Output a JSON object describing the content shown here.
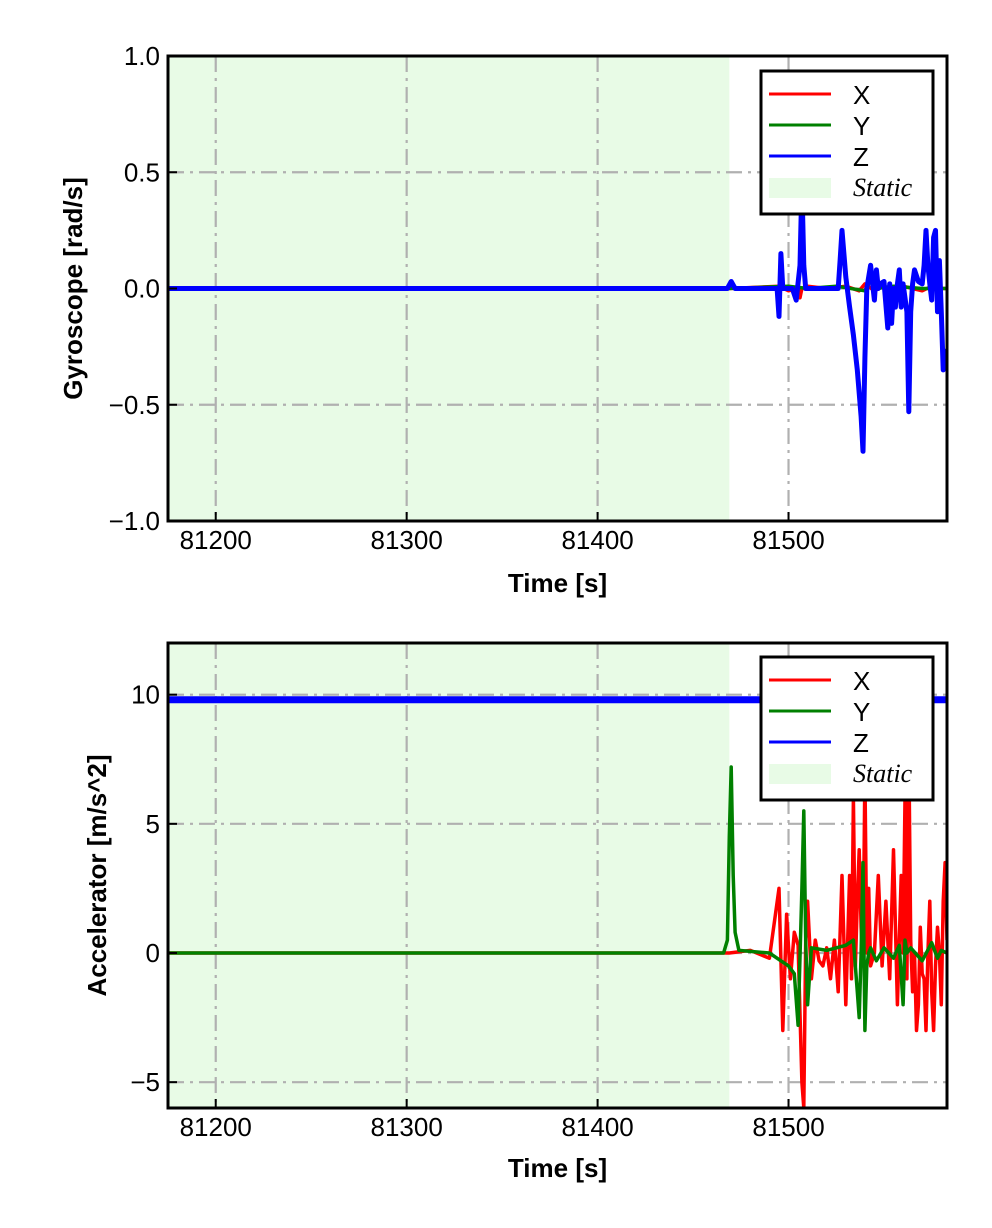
{
  "chart_data": [
    {
      "type": "line",
      "xlabel": "Time [s]",
      "ylabel": "Gyroscope [rad/s]",
      "xlim": [
        81175,
        81583
      ],
      "ylim": [
        -1.0,
        1.0
      ],
      "xticks": [
        81200,
        81300,
        81400,
        81500
      ],
      "xtick_labels": [
        "81200",
        "81300",
        "81400",
        "81500"
      ],
      "yticks": [
        -1.0,
        -0.5,
        0.0,
        0.5,
        1.0
      ],
      "ytick_labels": [
        "−1.0",
        "−0.5",
        "0.0",
        "0.5",
        "1.0"
      ],
      "grid": true,
      "legend_position": "top-right",
      "static_region": {
        "label": "Static",
        "x_start": 81175,
        "x_end": 81469,
        "color": "#e8fbe6"
      },
      "series": [
        {
          "name": "X",
          "color": "#ff0000",
          "x": [
            81175,
            81469,
            81495,
            81500,
            81505,
            81506,
            81507,
            81510,
            81520,
            81530,
            81537,
            81540,
            81545,
            81550,
            81555,
            81560,
            81565,
            81570,
            81575,
            81580,
            81583
          ],
          "y": [
            0,
            0,
            0.01,
            -0.01,
            0,
            -0.04,
            0,
            0.01,
            0,
            0.01,
            -0.01,
            0.02,
            -0.01,
            0.01,
            -0.02,
            0.01,
            0,
            -0.01,
            0.01,
            0,
            0
          ]
        },
        {
          "name": "Y",
          "color": "#008000",
          "x": [
            81175,
            81469,
            81500,
            81510,
            81525,
            81540,
            81544,
            81546,
            81555,
            81570,
            81583
          ],
          "y": [
            0,
            0,
            0.01,
            0,
            0.01,
            -0.01,
            0.05,
            0,
            0.01,
            0,
            0
          ]
        },
        {
          "name": "Z",
          "color": "#0000ff",
          "x": [
            81175,
            81468,
            81470,
            81472,
            81475,
            81480,
            81490,
            81494,
            81495,
            81496,
            81497,
            81499,
            81500,
            81502,
            81504,
            81506,
            81507,
            81508,
            81509,
            81510,
            81514,
            81518,
            81522,
            81526,
            81527,
            81528,
            81530,
            81532,
            81534,
            81536,
            81538,
            81539,
            81540,
            81541,
            81542,
            81543,
            81545,
            81546,
            81547,
            81548,
            81550,
            81552,
            81553,
            81554,
            81555,
            81556,
            81557,
            81558,
            81559,
            81560,
            81562,
            81563,
            81564,
            81565,
            81566,
            81568,
            81570,
            81571,
            81572,
            81573,
            81574,
            81575,
            81576,
            81577,
            81578,
            81579,
            81580,
            81581,
            81582,
            81583
          ],
          "y": [
            0,
            0,
            0.03,
            0,
            0,
            0,
            0,
            0,
            -0.12,
            0.15,
            0,
            0,
            0,
            0,
            -0.05,
            0.1,
            0.45,
            0.1,
            0,
            0,
            0,
            0,
            0,
            0,
            0.12,
            0.25,
            0.05,
            -0.08,
            -0.2,
            -0.35,
            -0.55,
            -0.7,
            -0.3,
            0,
            0.05,
            0.1,
            -0.05,
            0.08,
            0,
            0.02,
            0.03,
            -0.17,
            0.02,
            -0.15,
            0,
            -0.08,
            0.02,
            0.08,
            -0.08,
            0.02,
            -0.1,
            -0.53,
            -0.1,
            0.02,
            0.08,
            0.03,
            0.02,
            0.1,
            0.25,
            0.1,
            0.02,
            -0.05,
            0.22,
            0.25,
            -0.1,
            0.12,
            -0.1,
            -0.35,
            -0.27,
            -0.27
          ]
        }
      ]
    },
    {
      "type": "line",
      "xlabel": "Time [s]",
      "ylabel": "Accelerator [m/s^2]",
      "xlim": [
        81175,
        81583
      ],
      "ylim": [
        -6,
        12
      ],
      "xticks": [
        81200,
        81300,
        81400,
        81500
      ],
      "xtick_labels": [
        "81200",
        "81300",
        "81400",
        "81500"
      ],
      "yticks": [
        -5,
        0,
        5,
        10
      ],
      "ytick_labels": [
        "−5",
        "0",
        "5",
        "10"
      ],
      "grid": true,
      "legend_position": "top-right",
      "static_region": {
        "label": "Static",
        "x_start": 81175,
        "x_end": 81469,
        "color": "#e8fbe6"
      },
      "series": [
        {
          "name": "X",
          "color": "#ff0000",
          "x": [
            81175,
            81469,
            81480,
            81490,
            81495,
            81497,
            81499,
            81501,
            81503,
            81505,
            81507,
            81508,
            81509,
            81510,
            81512,
            81514,
            81516,
            81518,
            81520,
            81522,
            81524,
            81526,
            81528,
            81530,
            81532,
            81533,
            81534,
            81535,
            81536,
            81537,
            81538,
            81539,
            81540,
            81541,
            81542,
            81543,
            81545,
            81547,
            81549,
            81551,
            81553,
            81555,
            81557,
            81559,
            81560,
            81561,
            81562,
            81563,
            81564,
            81565,
            81566,
            81567,
            81568,
            81569,
            81570,
            81571,
            81572,
            81573,
            81574,
            81575,
            81576,
            81577,
            81578,
            81579,
            81580,
            81581,
            81582,
            81583
          ],
          "y": [
            0,
            0,
            0.1,
            -0.2,
            2.5,
            -3.0,
            1.5,
            -1.0,
            0.8,
            0.3,
            -5.0,
            -6.0,
            0.5,
            2.0,
            -1.0,
            0.5,
            -0.3,
            -0.5,
            0.2,
            -1.0,
            0.5,
            -1.5,
            3.0,
            -2.0,
            3.0,
            -1.0,
            6.0,
            -0.5,
            2.0,
            4.0,
            1.0,
            -0.5,
            7.0,
            0.0,
            2.5,
            -0.5,
            0.0,
            3.0,
            -0.5,
            2.0,
            -1.0,
            4.0,
            -2.0,
            3.0,
            0.0,
            6.0,
            -1.0,
            8.0,
            0.5,
            -1.5,
            0.0,
            -3.0,
            -2.0,
            1.0,
            -0.8,
            -1.0,
            -3.0,
            0.0,
            2.0,
            -1.5,
            -3.0,
            -0.5,
            1.0,
            0.0,
            -2.0,
            2.0,
            3.5,
            0.5
          ]
        },
        {
          "name": "Y",
          "color": "#008000",
          "x": [
            81175,
            81466,
            81468,
            81469,
            81470,
            81471,
            81472,
            81474,
            81490,
            81500,
            81503,
            81505,
            81507,
            81508,
            81509,
            81510,
            81512,
            81520,
            81530,
            81534,
            81536,
            81537,
            81538,
            81539,
            81540,
            81541,
            81542,
            81543,
            81546,
            81550,
            81555,
            81558,
            81560,
            81561,
            81562,
            81564,
            81570,
            81575,
            81578,
            81580,
            81583
          ],
          "y": [
            0,
            0,
            0.5,
            4.5,
            7.2,
            3.0,
            0.8,
            0.1,
            0,
            -0.5,
            -0.8,
            -2.8,
            2.5,
            5.5,
            0.5,
            -2.0,
            0.2,
            0.1,
            0.3,
            0.5,
            -1.5,
            -2.5,
            0.0,
            3.5,
            -3.0,
            -0.5,
            0.0,
            0.2,
            -0.3,
            0.2,
            -0.2,
            0.3,
            -2.0,
            0.5,
            0.0,
            0.2,
            -0.3,
            0.4,
            -0.2,
            0.1,
            0.0
          ]
        },
        {
          "name": "Z",
          "color": "#0000ff",
          "x": [
            81175,
            81469,
            81500,
            81530,
            81560,
            81583
          ],
          "y": [
            9.8,
            9.8,
            9.8,
            9.8,
            9.8,
            9.8
          ]
        }
      ]
    }
  ]
}
